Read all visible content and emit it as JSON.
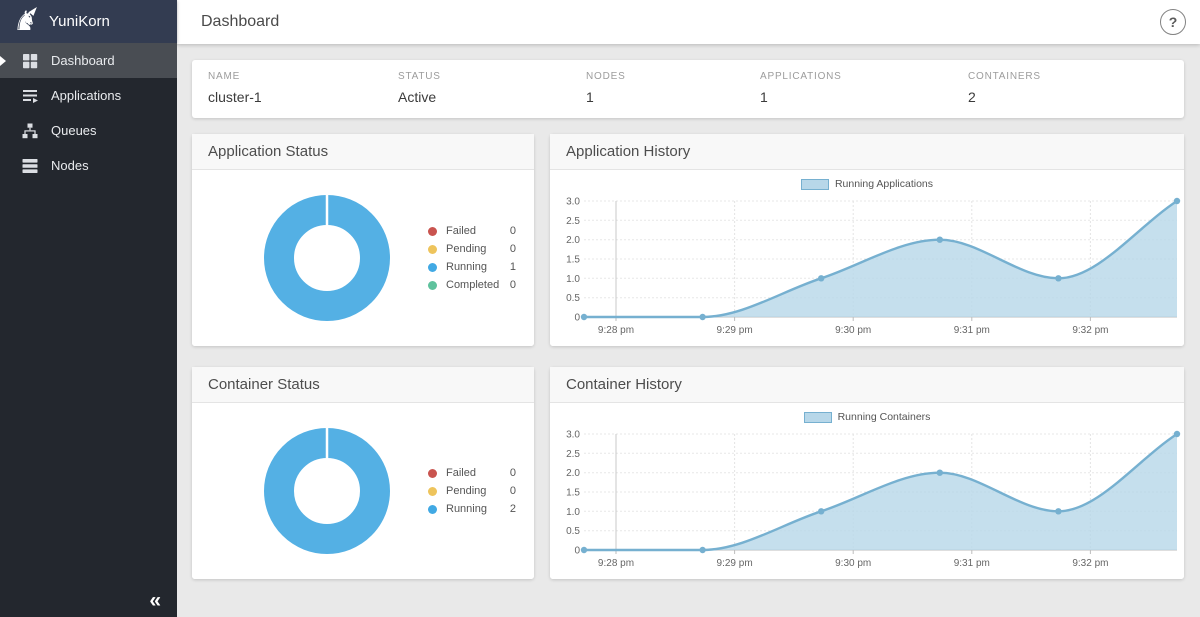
{
  "sidebar": {
    "app_name": "YuniKorn",
    "items": [
      {
        "label": "Dashboard",
        "active": true
      },
      {
        "label": "Applications",
        "active": false
      },
      {
        "label": "Queues",
        "active": false
      },
      {
        "label": "Nodes",
        "active": false
      }
    ],
    "collapse_label": "«"
  },
  "topbar": {
    "title": "Dashboard",
    "help_label": "?"
  },
  "cluster_info": {
    "columns": [
      {
        "label": "NAME",
        "value": "cluster-1"
      },
      {
        "label": "STATUS",
        "value": "Active"
      },
      {
        "label": "NODES",
        "value": "1"
      },
      {
        "label": "APPLICATIONS",
        "value": "1"
      },
      {
        "label": "CONTAINERS",
        "value": "2"
      }
    ]
  },
  "theme": {
    "sidebar_bg": "#23272e",
    "sidebar_header_bg": "#333c51",
    "active_item_bg": "#494d53",
    "content_bg": "#e9e9e9",
    "accent_blue": "#54b0e4"
  },
  "chart_data": [
    {
      "id": "application-status",
      "type": "pie",
      "donut": true,
      "title": "Application Status",
      "categories": [
        "Failed",
        "Pending",
        "Running",
        "Completed"
      ],
      "values": [
        0,
        0,
        1,
        0
      ],
      "colors": [
        "#c9544f",
        "#eec45c",
        "#41a9e4",
        "#5fc29d"
      ],
      "ring_color": "#54b0e4"
    },
    {
      "id": "application-history",
      "type": "area",
      "title": "Application History",
      "series": [
        {
          "name": "Running Applications",
          "values": [
            0,
            0,
            1,
            2,
            1,
            3
          ]
        }
      ],
      "x_tick_labels": [
        "9:28 pm",
        "9:29 pm",
        "9:30 pm",
        "9:31 pm",
        "9:32 pm"
      ],
      "y_tick_labels": [
        "3.0",
        "2.5",
        "2.0",
        "1.5",
        "1.0",
        "0.5",
        "0"
      ],
      "ylim": [
        0,
        3
      ],
      "grid": true,
      "legend_position": "top",
      "line_color": "#76b0d0",
      "fill_color": "#b7d7e9"
    },
    {
      "id": "container-status",
      "type": "pie",
      "donut": true,
      "title": "Container Status",
      "categories": [
        "Failed",
        "Pending",
        "Running"
      ],
      "values": [
        0,
        0,
        2
      ],
      "colors": [
        "#c9544f",
        "#eec45c",
        "#41a9e4"
      ],
      "ring_color": "#54b0e4"
    },
    {
      "id": "container-history",
      "type": "area",
      "title": "Container History",
      "series": [
        {
          "name": "Running Containers",
          "values": [
            0,
            0,
            1,
            2,
            1,
            3
          ]
        }
      ],
      "x_tick_labels": [
        "9:28 pm",
        "9:29 pm",
        "9:30 pm",
        "9:31 pm",
        "9:32 pm"
      ],
      "y_tick_labels": [
        "3.0",
        "2.5",
        "2.0",
        "1.5",
        "1.0",
        "0.5",
        "0"
      ],
      "ylim": [
        0,
        3
      ],
      "grid": true,
      "legend_position": "top",
      "line_color": "#76b0d0",
      "fill_color": "#b7d7e9"
    }
  ]
}
